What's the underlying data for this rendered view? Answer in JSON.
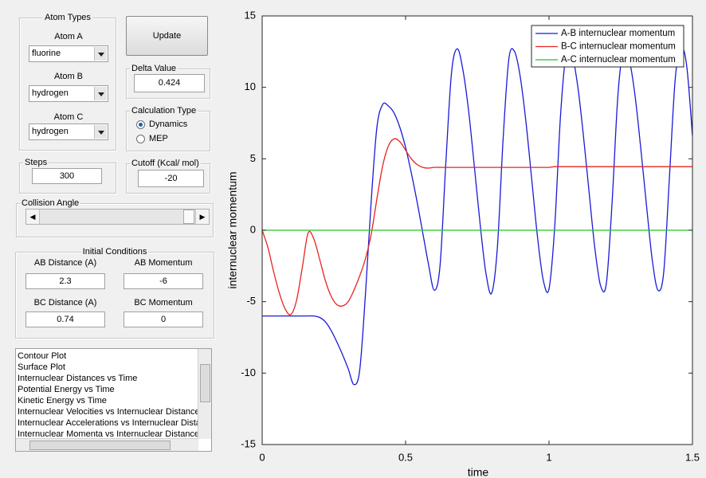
{
  "atom_types": {
    "title": "Atom Types",
    "atoms": [
      {
        "label": "Atom A",
        "value": "fluorine"
      },
      {
        "label": "Atom B",
        "value": "hydrogen"
      },
      {
        "label": "Atom C",
        "value": "hydrogen"
      }
    ]
  },
  "update_button": "Update",
  "delta_value": {
    "title": "Delta Value",
    "value": 0.424
  },
  "calculation_type": {
    "title": "Calculation Type",
    "options": [
      "Dynamics",
      "MEP"
    ],
    "selected": 0
  },
  "steps": {
    "title": "Steps",
    "value": 300
  },
  "cutoff": {
    "title": "Cutoff (Kcal/ mol)",
    "value": -20
  },
  "collision_angle": {
    "title": "Collision Angle"
  },
  "initial_conditions": {
    "title": "Initial Conditions",
    "fields": [
      {
        "label": "AB Distance (A)",
        "value": 2.3
      },
      {
        "label": "AB Momentum",
        "value": -6
      },
      {
        "label": "BC Distance (A)",
        "value": 0.74
      },
      {
        "label": "BC Momentum",
        "value": 0
      }
    ]
  },
  "plot_list": [
    "Contour Plot",
    "Surface Plot",
    "Internuclear Distances vs Time",
    "Potential Energy vs Time",
    "Kinetic Energy vs Time",
    "Internuclear Velocities vs Internuclear Distance",
    "Internuclear Accelerations vs Internuclear Distance",
    "Internuclear Momenta vs Internuclear Distance"
  ],
  "chart_data": {
    "type": "line",
    "xlabel": "time",
    "ylabel": "internuclear momentum",
    "xlim": [
      0,
      1.5
    ],
    "ylim": [
      -15,
      15
    ],
    "xticks": [
      0,
      0.5,
      1,
      1.5
    ],
    "yticks": [
      -15,
      -10,
      -5,
      0,
      5,
      10,
      15
    ],
    "legend": "upper right",
    "x": [
      0,
      0.02,
      0.04,
      0.06,
      0.08,
      0.1,
      0.12,
      0.14,
      0.16,
      0.18,
      0.2,
      0.22,
      0.24,
      0.26,
      0.28,
      0.3,
      0.32,
      0.34,
      0.36,
      0.38,
      0.4,
      0.42,
      0.44,
      0.46,
      0.48,
      0.5,
      0.52,
      0.54,
      0.56,
      0.58,
      0.6,
      0.62,
      0.64,
      0.66,
      0.68,
      0.7,
      0.72,
      0.74,
      0.76,
      0.78,
      0.8,
      0.82,
      0.84,
      0.86,
      0.88,
      0.9,
      0.92,
      0.94,
      0.96,
      0.98,
      1,
      1.02,
      1.04,
      1.06,
      1.08,
      1.1,
      1.12,
      1.14,
      1.16,
      1.18,
      1.2,
      1.22,
      1.24,
      1.26,
      1.28,
      1.3,
      1.32,
      1.34,
      1.36,
      1.38,
      1.4,
      1.42,
      1.44,
      1.46,
      1.48,
      1.5
    ],
    "series": [
      {
        "name": "A-B internuclear momentum",
        "color": "#1a1ad6",
        "values": [
          -6,
          -6,
          -6,
          -6,
          -6,
          -6,
          -6,
          -6,
          -6,
          -6,
          -6.1,
          -6.4,
          -7,
          -7.8,
          -8.7,
          -9.7,
          -10.8,
          -9.8,
          -4.5,
          2,
          7.2,
          8.8,
          8.7,
          8.2,
          7.2,
          5.8,
          4,
          2,
          -0.2,
          -2.4,
          -4.2,
          -2.5,
          4.6,
          11,
          12.7,
          11.2,
          8.3,
          4.4,
          0.4,
          -3,
          -4.4,
          -1.2,
          6.4,
          12,
          12.5,
          10.7,
          7.5,
          3.5,
          -0.5,
          -3.5,
          -4.1,
          0.3,
          8,
          12.4,
          12.3,
          10.1,
          6.6,
          2.6,
          -1.3,
          -3.9,
          -3.7,
          2,
          9.4,
          12.7,
          11.9,
          9.4,
          5.7,
          1.7,
          -2.1,
          -4.2,
          -2.9,
          3.8,
          10.6,
          12.8,
          11.5,
          6.6
        ]
      },
      {
        "name": "B-C internuclear momentum",
        "color": "#e8231f",
        "values": [
          0,
          -1.2,
          -2.9,
          -4.4,
          -5.5,
          -5.9,
          -4.9,
          -2.6,
          -0.2,
          -0.6,
          -2,
          -3.5,
          -4.6,
          -5.2,
          -5.3,
          -5,
          -4.2,
          -3.2,
          -2,
          -0.3,
          2.2,
          4.5,
          5.9,
          6.4,
          6.2,
          5.6,
          5,
          4.6,
          4.4,
          4.35,
          4.4,
          4.4,
          4.4,
          4.4,
          4.4,
          4.4,
          4.4,
          4.4,
          4.4,
          4.4,
          4.4,
          4.4,
          4.4,
          4.4,
          4.4,
          4.4,
          4.4,
          4.4,
          4.4,
          4.4,
          4.4,
          4.45,
          4.45,
          4.45,
          4.45,
          4.45,
          4.45,
          4.45,
          4.45,
          4.45,
          4.45,
          4.45,
          4.45,
          4.45,
          4.45,
          4.45,
          4.45,
          4.45,
          4.45,
          4.45,
          4.45,
          4.45,
          4.45,
          4.45,
          4.45,
          4.45
        ]
      },
      {
        "name": "A-C internuclear momentum",
        "color": "#22c522",
        "values": [
          0,
          0,
          0,
          0,
          0,
          0,
          0,
          0,
          0,
          0,
          0,
          0,
          0,
          0,
          0,
          0,
          0,
          0,
          0,
          0,
          0,
          0,
          0,
          0,
          0,
          0,
          0,
          0,
          0,
          0,
          0,
          0,
          0,
          0,
          0,
          0,
          0,
          0,
          0,
          0,
          0,
          0,
          0,
          0,
          0,
          0,
          0,
          0,
          0,
          0,
          0,
          0,
          0,
          0,
          0,
          0,
          0,
          0,
          0,
          0,
          0,
          0,
          0,
          0,
          0,
          0,
          0,
          0,
          0,
          0,
          0,
          0,
          0,
          0,
          0,
          0
        ]
      }
    ]
  }
}
